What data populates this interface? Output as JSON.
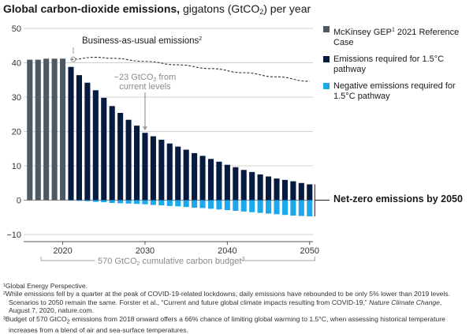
{
  "title": {
    "bold": "Global carbon-dioxide emissions,",
    "rest": " gigatons (GtCO",
    "sub": "2",
    "tail": ") per year"
  },
  "legend": [
    {
      "label": "McKinsey GEP",
      "sup": "1",
      "label_tail": " 2021 Reference Case",
      "color": "#4d5a63"
    },
    {
      "label": "Emissions required for 1.5°C pathway",
      "sup": "",
      "label_tail": "",
      "color": "#071a3f"
    },
    {
      "label": "Negative emissions required for 1.5°C pathway",
      "sup": "",
      "label_tail": "",
      "color": "#1ca8ec"
    }
  ],
  "annotations": {
    "bau": "Business-as-usual emissions",
    "bau_sup": "2",
    "reduction_line1": "−23 GtCO",
    "reduction_sub": "2",
    "reduction_line1_tail": " from",
    "reduction_line2": "current levels",
    "net_zero": "Net-zero emissions by 2050",
    "budget": "570 GtCO",
    "budget_sub": "2",
    "budget_tail": " cumulative carbon budget",
    "budget_sup": "3"
  },
  "footnotes": {
    "f1": "¹Global Energy Perspective.",
    "f2a": "²While emissions fell by a quarter at the peak of COVID-19-related lockdowns, daily emissions have rebounded to be only 5% lower than 2019 levels.",
    "f2b": "Scenarios to 2050 remain the same. Forster et al., “Current and future global climate impacts resulting from COVID-19,”",
    "f2b_italic": "Nature Climate Change",
    "f2b_tail": ",",
    "f2c": "August 7, 2020, nature.com.",
    "f3a_pre": "³Budget of 570 GtCO",
    "f3a_sub": "2",
    "f3a_post": " emissions from 2018 onward offers a 66% chance of limiting global warming to 1.5°C, when assessing historical temperature",
    "f3b": "increases from a blend of air and sea-surface temperatures."
  },
  "chart_data": {
    "type": "bar",
    "title": "Global carbon-dioxide emissions, gigatons (GtCO2) per year",
    "ylim": [
      -10,
      50
    ],
    "yticks": [
      -10,
      0,
      10,
      20,
      30,
      40,
      50
    ],
    "xticks": [
      2020,
      2030,
      2040,
      2050
    ],
    "grid": true,
    "legend_position": "right",
    "colors": {
      "reference": "#4d5a63",
      "pathway": "#071a3f",
      "negative": "#1ca8ec",
      "bau": "#333333"
    },
    "reference_case": {
      "name": "McKinsey GEP 2021 Reference Case",
      "x": [
        2016,
        2017,
        2018,
        2019,
        2020
      ],
      "values": [
        40.9,
        40.9,
        41.2,
        41.2,
        41.2
      ]
    },
    "pathway": {
      "name": "Emissions required for 1.5°C pathway",
      "x": [
        2021,
        2022,
        2023,
        2024,
        2025,
        2026,
        2027,
        2028,
        2029,
        2030,
        2031,
        2032,
        2033,
        2034,
        2035,
        2036,
        2037,
        2038,
        2039,
        2040,
        2041,
        2042,
        2043,
        2044,
        2045,
        2046,
        2047,
        2048,
        2049,
        2050
      ],
      "values": [
        38.8,
        36.4,
        34.2,
        32.0,
        29.8,
        27.4,
        25.4,
        23.4,
        21.7,
        19.6,
        18.6,
        17.6,
        16.5,
        15.6,
        14.7,
        13.7,
        12.9,
        12.0,
        11.2,
        10.3,
        9.6,
        8.8,
        8.2,
        7.5,
        6.9,
        6.3,
        5.9,
        5.5,
        5.0,
        4.6
      ]
    },
    "negative": {
      "name": "Negative emissions required for 1.5°C pathway",
      "x": [
        2021,
        2022,
        2023,
        2024,
        2025,
        2026,
        2027,
        2028,
        2029,
        2030,
        2031,
        2032,
        2033,
        2034,
        2035,
        2036,
        2037,
        2038,
        2039,
        2040,
        2041,
        2042,
        2043,
        2044,
        2045,
        2046,
        2047,
        2048,
        2049,
        2050
      ],
      "values": [
        -0.1,
        -0.2,
        -0.3,
        -0.5,
        -0.6,
        -0.8,
        -0.9,
        -1.0,
        -1.1,
        -1.2,
        -1.4,
        -1.5,
        -1.7,
        -1.8,
        -2.0,
        -2.2,
        -2.3,
        -2.5,
        -2.7,
        -2.9,
        -3.1,
        -3.3,
        -3.5,
        -3.7,
        -3.9,
        -4.1,
        -4.3,
        -4.5,
        -4.6,
        -4.7
      ]
    },
    "business_as_usual": {
      "name": "Business-as-usual emissions",
      "x": [
        2021,
        2024,
        2026,
        2030,
        2034,
        2038,
        2042,
        2046,
        2050
      ],
      "values": [
        41.0,
        41.6,
        41.3,
        40.4,
        39.4,
        38.3,
        37.1,
        35.9,
        34.6
      ]
    },
    "reduction_arrow": {
      "x": 2030,
      "from": 28.5,
      "to": 19.6
    }
  }
}
